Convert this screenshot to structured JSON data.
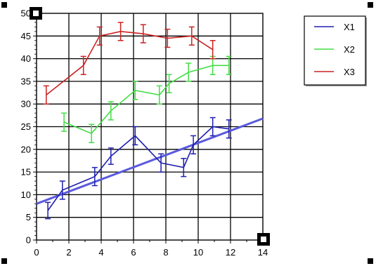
{
  "chart_data": {
    "type": "line",
    "title": "",
    "xlabel": "",
    "ylabel": "",
    "xlim": [
      0,
      14
    ],
    "ylim": [
      0,
      50
    ],
    "x_ticks": [
      0,
      2,
      4,
      6,
      8,
      10,
      12,
      14
    ],
    "y_ticks": [
      0,
      5,
      10,
      15,
      20,
      25,
      30,
      35,
      40,
      45,
      50
    ],
    "grid": true,
    "legend_position": "top-right",
    "series": [
      {
        "name": "X1",
        "color": "#1f1fb0",
        "points": [
          {
            "x": 0.7,
            "y": 6.5,
            "err": 1.8
          },
          {
            "x": 1.6,
            "y": 11.0,
            "err": 2.0
          },
          {
            "x": 3.6,
            "y": 14.0,
            "err": 2.0
          },
          {
            "x": 4.6,
            "y": 18.5,
            "err": 1.8
          },
          {
            "x": 6.1,
            "y": 23.0,
            "err": 2.0
          },
          {
            "x": 7.7,
            "y": 17.0,
            "err": 2.0
          },
          {
            "x": 9.1,
            "y": 16.0,
            "err": 2.0
          },
          {
            "x": 9.7,
            "y": 21.0,
            "err": 2.0
          },
          {
            "x": 10.9,
            "y": 25.0,
            "err": 2.0
          },
          {
            "x": 11.9,
            "y": 24.5,
            "err": 2.0
          }
        ]
      },
      {
        "name": "X2",
        "color": "#44dd44",
        "points": [
          {
            "x": 1.7,
            "y": 26.0,
            "err": 2.0
          },
          {
            "x": 3.4,
            "y": 23.5,
            "err": 2.0
          },
          {
            "x": 4.6,
            "y": 28.5,
            "err": 2.0
          },
          {
            "x": 6.1,
            "y": 33.0,
            "err": 2.0
          },
          {
            "x": 7.6,
            "y": 32.0,
            "err": 2.0
          },
          {
            "x": 8.2,
            "y": 34.5,
            "err": 2.0
          },
          {
            "x": 9.4,
            "y": 37.0,
            "err": 2.0
          },
          {
            "x": 10.9,
            "y": 38.5,
            "err": 2.0
          },
          {
            "x": 11.9,
            "y": 38.5,
            "err": 2.0
          }
        ]
      },
      {
        "name": "X3",
        "color": "#cc2222",
        "points": [
          {
            "x": 0.6,
            "y": 32.0,
            "err": 2.0
          },
          {
            "x": 2.9,
            "y": 38.5,
            "err": 2.0
          },
          {
            "x": 3.9,
            "y": 45.0,
            "err": 2.0
          },
          {
            "x": 5.2,
            "y": 46.0,
            "err": 2.0
          },
          {
            "x": 6.6,
            "y": 45.5,
            "err": 2.0
          },
          {
            "x": 8.1,
            "y": 44.5,
            "err": 2.0
          },
          {
            "x": 9.6,
            "y": 45.0,
            "err": 2.0
          },
          {
            "x": 10.9,
            "y": 42.0,
            "err": 2.0
          }
        ]
      }
    ],
    "fit_line": {
      "color": "#5a5adc",
      "from": {
        "x": 0,
        "y": 8.0
      },
      "to": {
        "x": 14,
        "y": 26.8
      }
    }
  }
}
